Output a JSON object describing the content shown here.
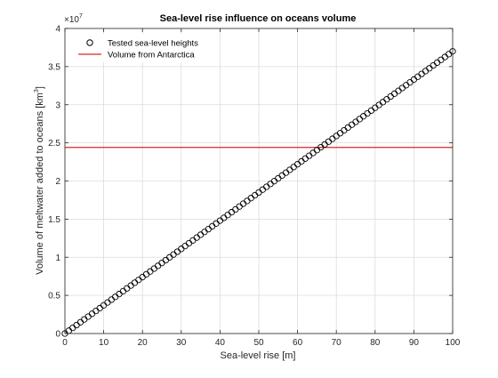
{
  "chart_data": {
    "type": "scatter",
    "title": "Sea-level rise influence on oceans volume",
    "xlabel": "Sea-level rise [m]",
    "ylabel_main": "Volume of meltwater added to oceans [km",
    "ylabel_sup": "3",
    "ylabel_end": "]",
    "exponent_base": "×10",
    "exponent_power": "7",
    "xlim": [
      0,
      100
    ],
    "ylim": [
      0,
      40000000
    ],
    "y_scale_factor": 10000000,
    "xticks": [
      0,
      10,
      20,
      30,
      40,
      50,
      60,
      70,
      80,
      90,
      100
    ],
    "yticks": [
      0,
      0.5,
      1,
      1.5,
      2,
      2.5,
      3,
      3.5,
      4
    ],
    "ytick_labels": [
      "0",
      "0.5",
      "1",
      "1.5",
      "2",
      "2.5",
      "3",
      "3.5",
      "4"
    ],
    "grid": true,
    "legend_position": "top-left",
    "series": [
      {
        "name": "Tested sea-level heights",
        "kind": "markers",
        "marker": "open-circle",
        "color": "#000000",
        "x_start": 0,
        "x_end": 100,
        "x_step": 1,
        "slope_per_m": 370000
      },
      {
        "name": "Volume from Antarctica",
        "kind": "hline",
        "color": "#d62728",
        "value": 24400000
      }
    ]
  }
}
